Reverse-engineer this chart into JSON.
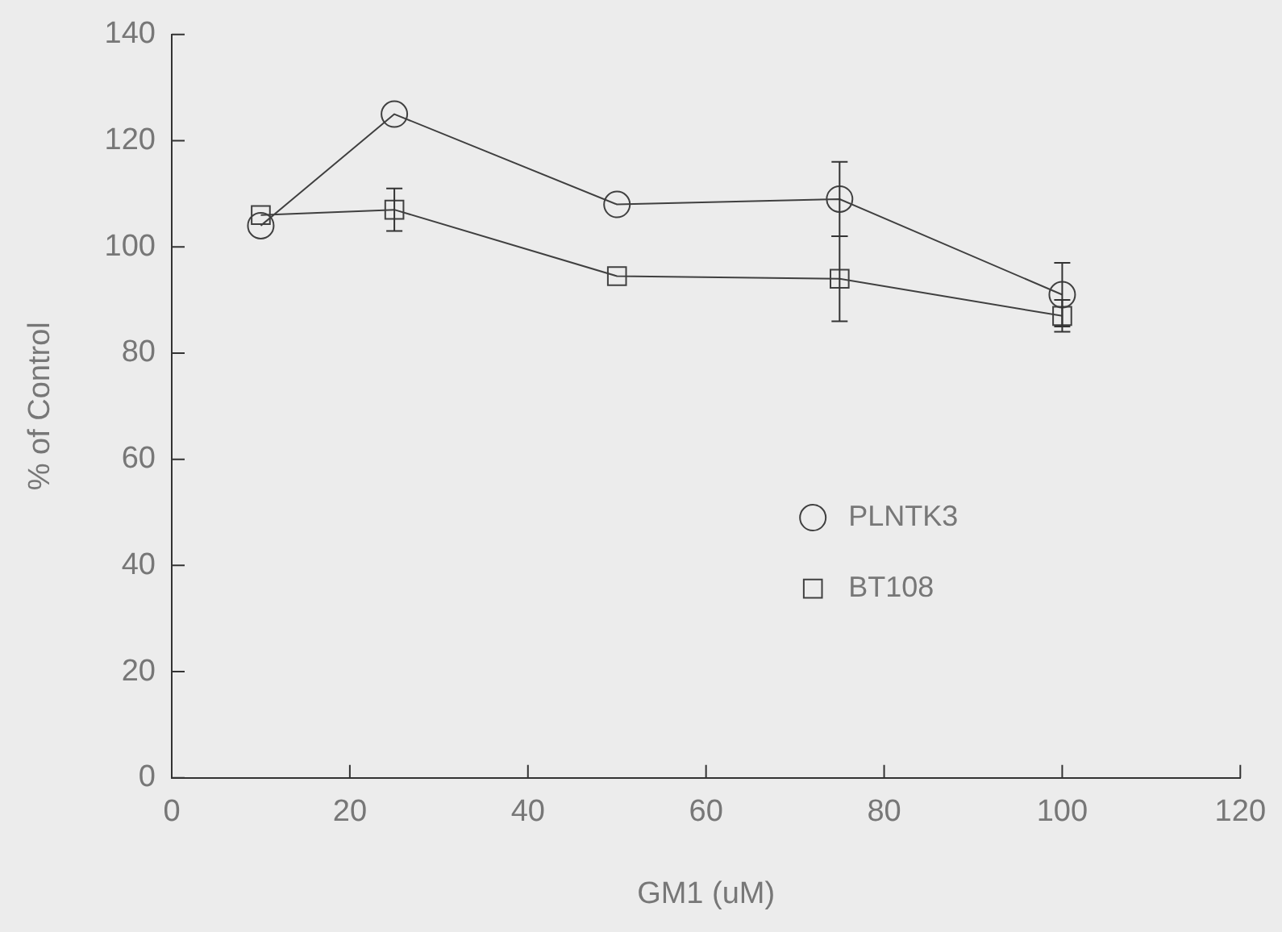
{
  "chart_data": {
    "type": "line",
    "xlabel": "GM1 (uM)",
    "ylabel": "% of Control",
    "x": [
      10,
      25,
      50,
      75,
      100
    ],
    "series": [
      {
        "name": "PLNTK3",
        "color": "#404040",
        "marker": "circle",
        "values": [
          104,
          125,
          108,
          109,
          91
        ],
        "errors": [
          null,
          null,
          null,
          7,
          6
        ]
      },
      {
        "name": "BT108",
        "color": "#404040",
        "marker": "square",
        "values": [
          106,
          107,
          94.5,
          94,
          87
        ],
        "errors": [
          null,
          4,
          null,
          8,
          3
        ]
      }
    ],
    "xlim": [
      0,
      120
    ],
    "xticks": [
      0,
      20,
      40,
      60,
      80,
      100,
      120
    ],
    "ylim": [
      0,
      140
    ],
    "yticks": [
      0,
      20,
      40,
      60,
      80,
      100,
      120,
      140
    ],
    "grid": false,
    "legend": "right",
    "line_style": "solid"
  }
}
